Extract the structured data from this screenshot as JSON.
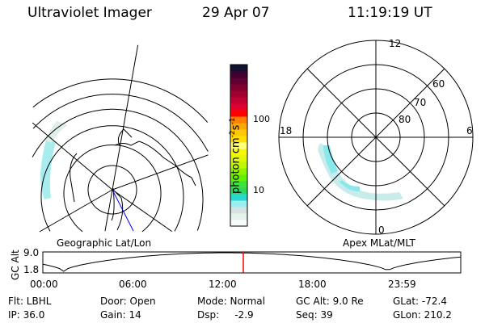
{
  "header": {
    "instrument": "Ultraviolet Imager",
    "date": "29 Apr 07",
    "time": "11:19:19 UT"
  },
  "colorbar": {
    "unit_label": "photon cm",
    "unit_sup1": "-2",
    "unit_mid": "s",
    "unit_sup2": "-1",
    "ticks": [
      "100",
      "10"
    ],
    "colors": [
      "#fafcfa",
      "#e8f2ec",
      "#d4e4e0",
      "#9beef0",
      "#2ad8d0",
      "#2cd860",
      "#40e040",
      "#60f000",
      "#90f000",
      "#c0f800",
      "#e0f800",
      "#f8f800",
      "#ffff80",
      "#ffe000",
      "#ffc800",
      "#ffa800",
      "#ff8000",
      "#ff0000",
      "#e00030",
      "#c00030",
      "#a00030",
      "#800030",
      "#600030",
      "#400030",
      "#101030"
    ]
  },
  "geo_map": {
    "label": "Geographic Lat/Lon"
  },
  "apex_map": {
    "label": "Apex MLat/MLT",
    "mlt_labels": [
      "12",
      "18",
      "6",
      "0"
    ],
    "lat_labels": [
      "60",
      "70",
      "80"
    ]
  },
  "timeline": {
    "ylabel": "GC Alt",
    "yticks": [
      "9.0",
      "1.8"
    ],
    "xticks": [
      "00:00",
      "06:00",
      "12:00",
      "18:00",
      "23:59"
    ],
    "current_marker_color": "#ff0000"
  },
  "info": {
    "filter": "Flt: LBHL",
    "ip": "IP: 36.0",
    "door": "Door: Open",
    "gain": "Gain: 14",
    "mode": "Mode: Normal",
    "dsp": "Dsp:     -2.9",
    "gc_alt": "GC Alt: 9.0 Re",
    "seq": "Seq: 39",
    "glat": "GLat: -72.4",
    "glon": "GLon: 210.2"
  }
}
